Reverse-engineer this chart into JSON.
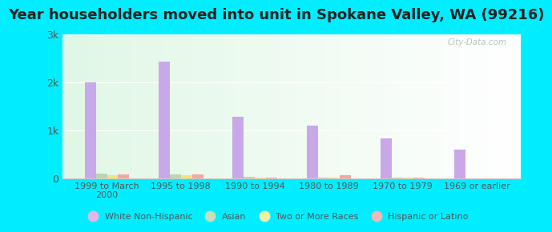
{
  "title": "Year householders moved into unit in Spokane Valley, WA (99216)",
  "categories": [
    "1999 to March\n2000",
    "1995 to 1998",
    "1990 to 1994",
    "1980 to 1989",
    "1970 to 1979",
    "1969 or earlier"
  ],
  "series": {
    "White Non-Hispanic": [
      2000,
      2430,
      1270,
      1100,
      820,
      600
    ],
    "Asian": [
      90,
      80,
      20,
      15,
      10,
      0
    ],
    "Two or More Races": [
      55,
      65,
      10,
      10,
      5,
      0
    ],
    "Hispanic or Latino": [
      80,
      70,
      15,
      60,
      10,
      0
    ]
  },
  "bar_colors": {
    "White Non-Hispanic": "#c8a8e8",
    "Asian": "#b8d8b0",
    "Two or More Races": "#f0e870",
    "Hispanic or Latino": "#f0a8a0"
  },
  "legend_colors": {
    "White Non-Hispanic": "#e0b8e8",
    "Asian": "#c8ddb8",
    "Two or More Races": "#f0f0a0",
    "Hispanic or Latino": "#f0b8b8"
  },
  "ylim": [
    0,
    3000
  ],
  "yticks": [
    0,
    1000,
    2000,
    3000
  ],
  "ytick_labels": [
    "0",
    "1k",
    "2k",
    "3k"
  ],
  "outer_bg": "#00eeff",
  "bar_width": 0.15,
  "title_fontsize": 13,
  "watermark": "City-Data.com"
}
